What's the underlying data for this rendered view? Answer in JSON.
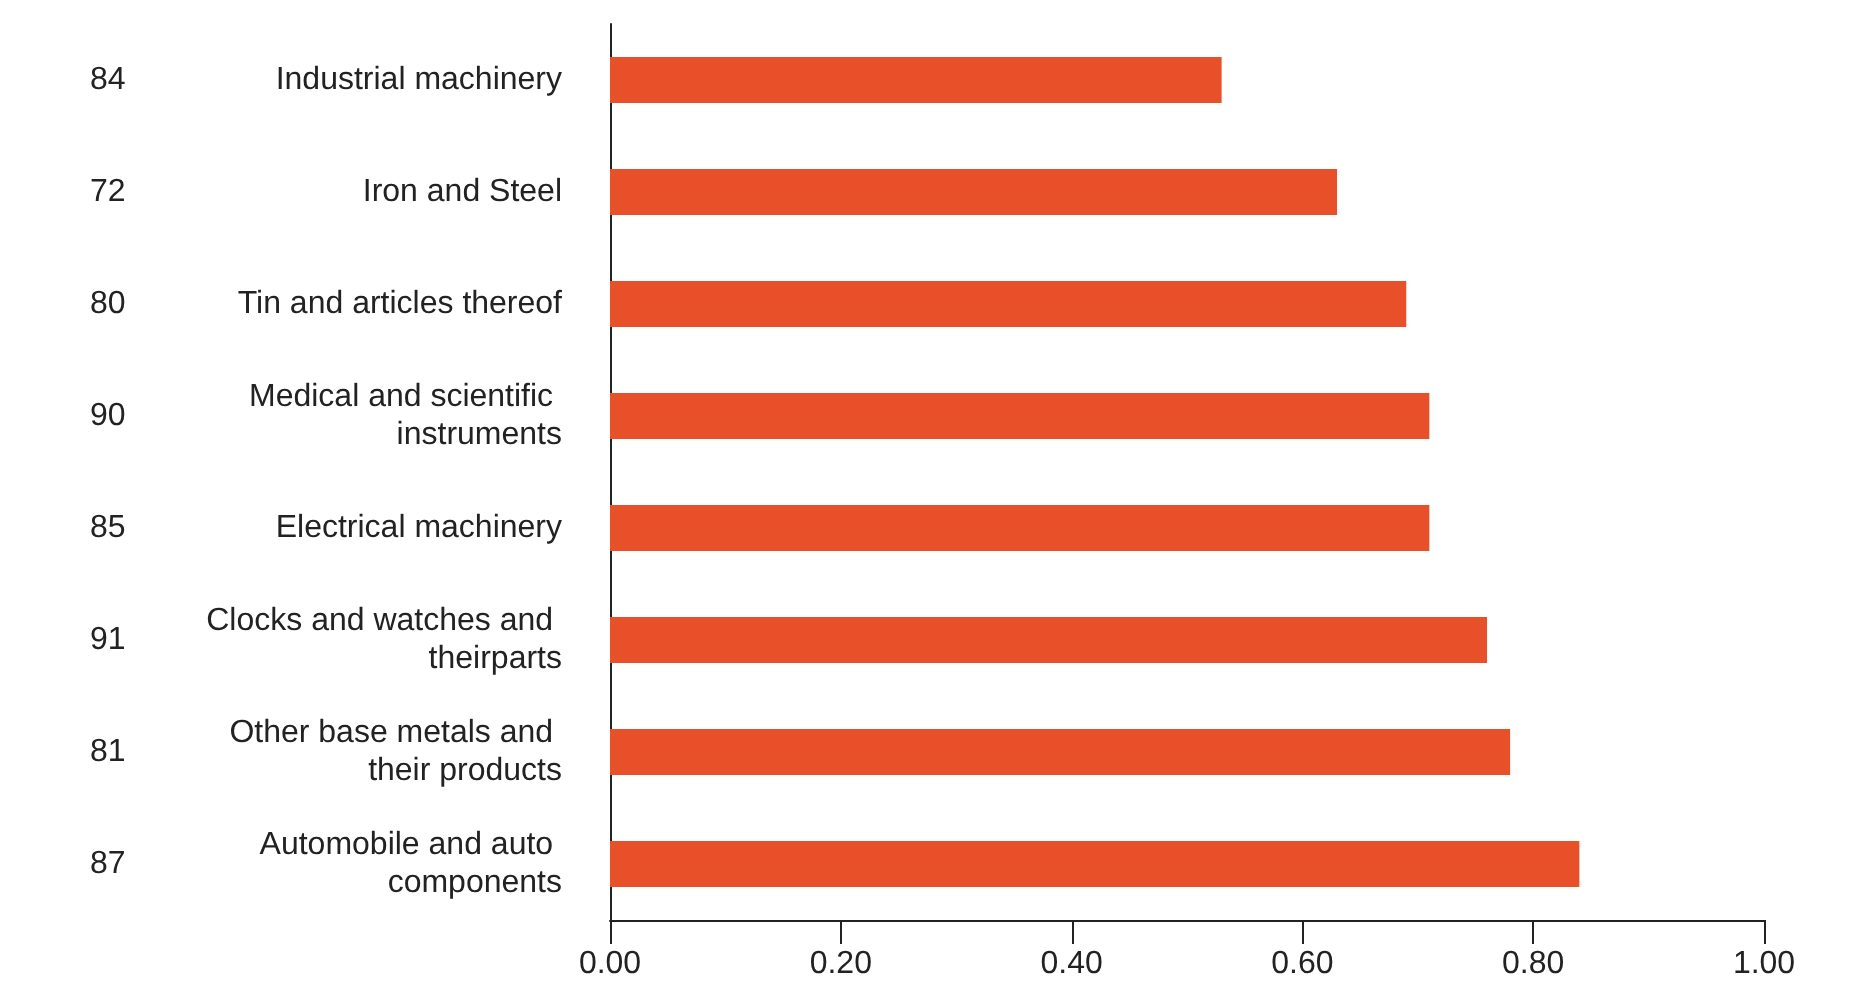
{
  "chart_data": {
    "type": "bar",
    "orientation": "horizontal",
    "categories": [
      "Industrial machinery",
      "Iron and Steel",
      "Tin and articles thereof",
      "Medical and scientific instruments",
      "Electrical machinery",
      "Clocks and watches and theirparts",
      "Other base metals and their products",
      "Automobile and auto components"
    ],
    "values": [
      0.53,
      0.63,
      0.69,
      0.71,
      0.71,
      0.76,
      0.78,
      0.84
    ],
    "color": "#e8502a",
    "xlim": [
      0,
      1
    ],
    "xticks": [
      {
        "value": 0,
        "label": "0.00"
      },
      {
        "value": 0.2,
        "label": "0.20"
      },
      {
        "value": 0.4,
        "label": "0.40"
      },
      {
        "value": 0.6,
        "label": "0.60"
      },
      {
        "value": 0.8,
        "label": "0.80"
      },
      {
        "value": 1,
        "label": "1.00"
      }
    ],
    "annotations": [
      "84",
      "72",
      "80",
      "90",
      "85",
      "91",
      "81",
      "87"
    ],
    "grid": false
  }
}
